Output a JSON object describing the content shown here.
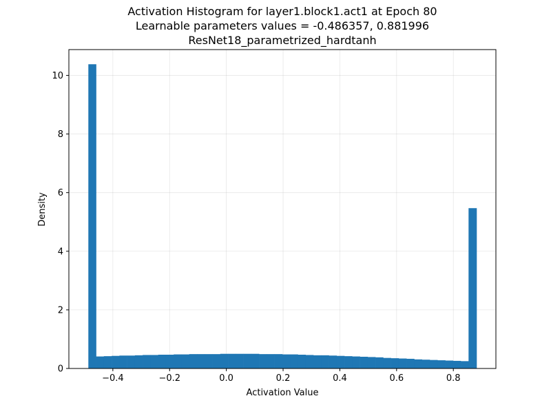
{
  "chart_data": {
    "type": "bar",
    "title": [
      "Activation Histogram for layer1.block1.act1 at Epoch 80",
      "Learnable parameters values = -0.486357, 0.881996",
      "ResNet18_parametrized_hardtanh"
    ],
    "xlabel": "Activation Value",
    "ylabel": "Density",
    "xlim": [
      -0.555,
      0.95
    ],
    "ylim": [
      0,
      10.88
    ],
    "xticks": [
      -0.4,
      -0.2,
      0.0,
      0.2,
      0.4,
      0.6,
      0.8
    ],
    "xtick_labels": [
      "−0.4",
      "−0.2",
      "0.0",
      "0.2",
      "0.4",
      "0.6",
      "0.8"
    ],
    "yticks": [
      0,
      2,
      4,
      6,
      8,
      10
    ],
    "ytick_labels": [
      "0",
      "2",
      "4",
      "6",
      "8",
      "10"
    ],
    "grid": true,
    "bar_color": "#1f77b4",
    "bin_edges": [
      -0.486357,
      -0.45901,
      -0.431663,
      -0.404316,
      -0.376969,
      -0.349622,
      -0.322275,
      -0.294927,
      -0.26758,
      -0.240233,
      -0.212886,
      -0.185539,
      -0.158192,
      -0.130845,
      -0.103498,
      -0.076151,
      -0.048804,
      -0.021457,
      0.00589,
      0.033237,
      0.060584,
      0.087931,
      0.115278,
      0.142625,
      0.169972,
      0.19732,
      0.224667,
      0.252014,
      0.279361,
      0.306708,
      0.334055,
      0.361402,
      0.388749,
      0.416096,
      0.443443,
      0.47079,
      0.498137,
      0.525484,
      0.552831,
      0.580178,
      0.607525,
      0.634872,
      0.662219,
      0.689566,
      0.716913,
      0.74426,
      0.771607,
      0.798954,
      0.826302,
      0.853649,
      0.881996
    ],
    "values": [
      10.38,
      0.41,
      0.42,
      0.43,
      0.44,
      0.44,
      0.45,
      0.46,
      0.46,
      0.47,
      0.47,
      0.48,
      0.48,
      0.49,
      0.49,
      0.49,
      0.49,
      0.5,
      0.5,
      0.5,
      0.5,
      0.5,
      0.49,
      0.49,
      0.49,
      0.48,
      0.48,
      0.47,
      0.46,
      0.45,
      0.45,
      0.44,
      0.43,
      0.42,
      0.41,
      0.4,
      0.39,
      0.38,
      0.36,
      0.35,
      0.34,
      0.33,
      0.31,
      0.3,
      0.29,
      0.28,
      0.27,
      0.26,
      0.25,
      5.47
    ]
  }
}
